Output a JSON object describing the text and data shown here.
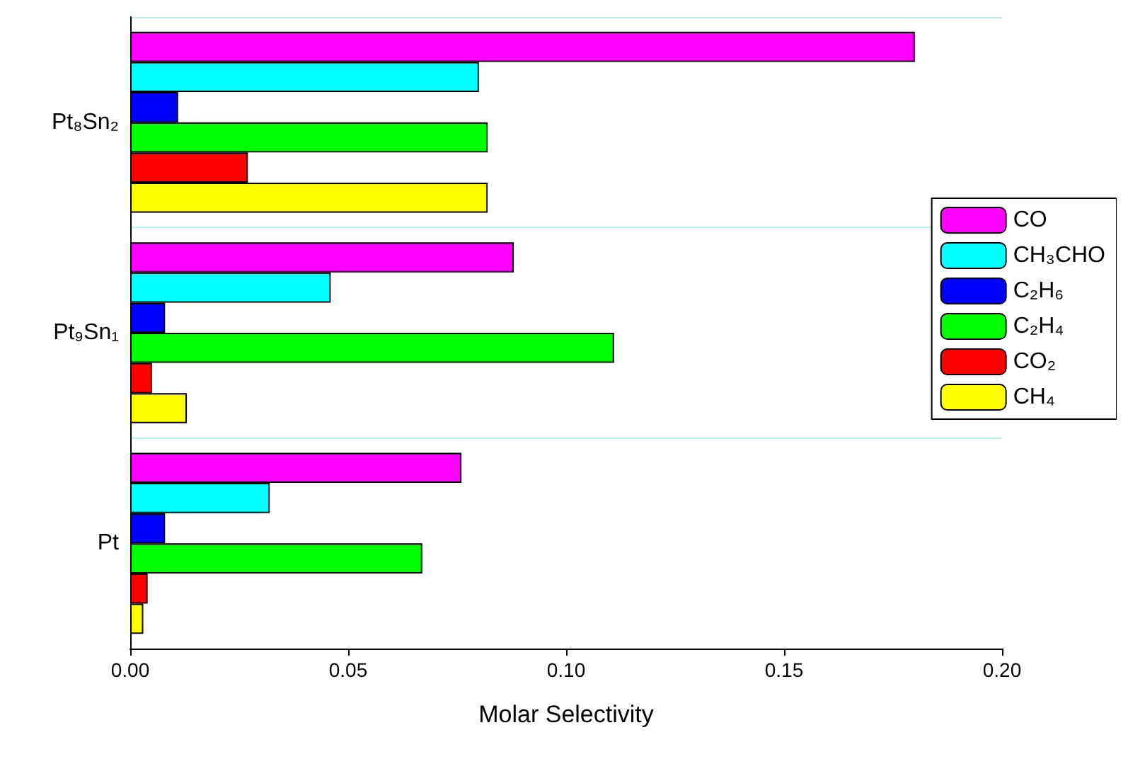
{
  "chart_data": {
    "type": "bar",
    "orientation": "horizontal",
    "xlabel": "Molar Selectivity",
    "categories": [
      "Pt₈Sn₂",
      "Pt₉Sn₁",
      "Pt"
    ],
    "series": [
      {
        "name": "CO",
        "color": "#ff00ff",
        "values": [
          0.18,
          0.088,
          0.076
        ]
      },
      {
        "name": "CH₃CHO",
        "color": "#00ffff",
        "values": [
          0.08,
          0.046,
          0.032
        ]
      },
      {
        "name": "C₂H₆",
        "color": "#0000ff",
        "values": [
          0.011,
          0.008,
          0.008
        ]
      },
      {
        "name": "C₂H₄",
        "color": "#00ff00",
        "values": [
          0.082,
          0.111,
          0.067
        ]
      },
      {
        "name": "CO₂",
        "color": "#ff0000",
        "values": [
          0.027,
          0.005,
          0.004
        ]
      },
      {
        "name": "CH₄",
        "color": "#ffff00",
        "values": [
          0.082,
          0.013,
          0.003
        ]
      }
    ],
    "xlim": [
      0,
      0.2
    ],
    "xticks": [
      {
        "value": 0,
        "label": "0.00"
      },
      {
        "value": 0.05,
        "label": "0.05"
      },
      {
        "value": 0.1,
        "label": "0.10"
      },
      {
        "value": 0.15,
        "label": "0.15"
      },
      {
        "value": 0.2,
        "label": "0.20"
      }
    ],
    "grid": "y",
    "legend": "right"
  }
}
